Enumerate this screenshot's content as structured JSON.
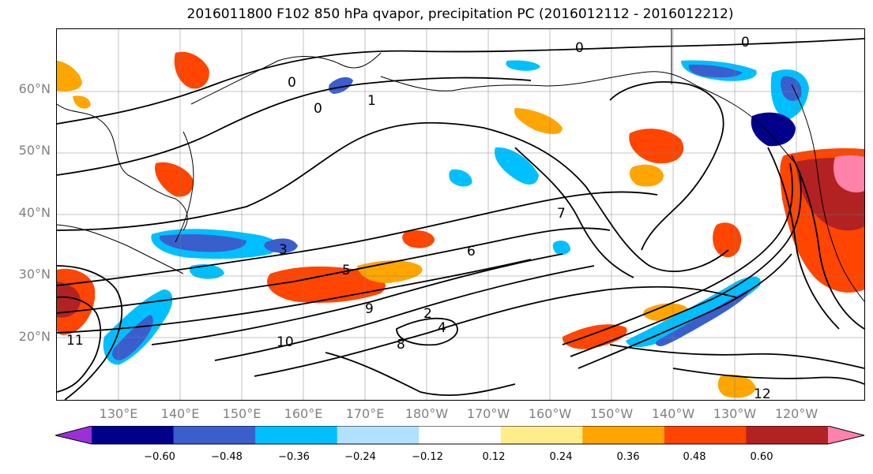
{
  "title": "2016011800 F102 850 hPa qvapor, precipitation PC (2016012112 - 2016012212)",
  "lat_labels": [
    "60°N",
    "50°N",
    "40°N",
    "30°N",
    "20°N"
  ],
  "lon_labels": [
    "130°E",
    "140°E",
    "150°E",
    "160°E",
    "170°E",
    "180°W",
    "170°W",
    "160°W",
    "150°W",
    "140°W",
    "130°W",
    "120°W"
  ],
  "colorbar": {
    "colors": [
      "#9b30d9",
      "#00008b",
      "#3a5fcd",
      "#00bfff",
      "#b0e2ff",
      "#ffffff",
      "#ffec8b",
      "#ffa500",
      "#ff4500",
      "#b22222",
      "#ff82ab"
    ],
    "tick_labels": [
      "−0.60",
      "−0.48",
      "−0.36",
      "−0.24",
      "−0.12",
      "0.12",
      "0.24",
      "0.36",
      "0.48",
      "0.60"
    ]
  },
  "contour_labels": [
    "0",
    "0",
    "0",
    "0",
    "1",
    "3",
    "5",
    "6",
    "7",
    "9",
    "10",
    "11",
    "12",
    "8",
    "2",
    "4"
  ]
}
